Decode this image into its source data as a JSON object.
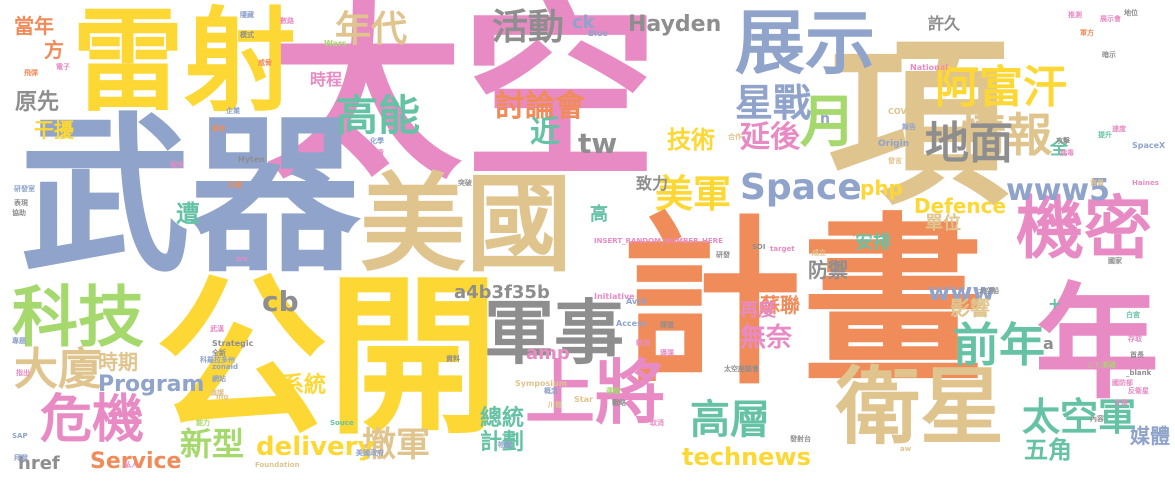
{
  "palette": [
    "#f08c5a",
    "#fdd835",
    "#8fa3cb",
    "#e88bc4",
    "#a5d86d",
    "#e0c48e",
    "#8e8e8e",
    "#66c2a5"
  ],
  "words": [
    {
      "text": "太空",
      "color": "#e88bc4"
    },
    {
      "text": "武器",
      "color": "#8fa3cb"
    },
    {
      "text": "計畫",
      "color": "#f08c5a"
    },
    {
      "text": "公開",
      "color": "#fdd835"
    },
    {
      "text": "雷射",
      "color": "#fdd835"
    },
    {
      "text": "項",
      "color": "#e0c48e"
    },
    {
      "text": "美國",
      "color": "#e0c48e"
    },
    {
      "text": "年",
      "color": "#e88bc4"
    },
    {
      "text": "機密",
      "color": "#e88bc4"
    },
    {
      "text": "衛星",
      "color": "#e0c48e"
    },
    {
      "text": "軍事",
      "color": "#8e8e8e"
    },
    {
      "text": "展示",
      "color": "#8fa3cb"
    },
    {
      "text": "上將",
      "color": "#e88bc4"
    },
    {
      "text": "科技",
      "color": "#a5d86d"
    },
    {
      "text": "月",
      "color": "#a5d86d"
    },
    {
      "text": "Space",
      "color": "#8fa3cb"
    },
    {
      "text": "危機",
      "color": "#e88bc4"
    },
    {
      "text": "阿富汗",
      "color": "#fdd835"
    },
    {
      "text": "前年",
      "color": "#66c2a5"
    },
    {
      "text": "高能",
      "color": "#66c2a5"
    },
    {
      "text": "星戰",
      "color": "#8fa3cb"
    },
    {
      "text": "情報",
      "color": "#e0c48e"
    },
    {
      "text": "地面",
      "color": "#8e8e8e"
    },
    {
      "text": "太空軍",
      "color": "#66c2a5"
    },
    {
      "text": "高層",
      "color": "#66c2a5"
    },
    {
      "text": "大廈",
      "color": "#e0c48e"
    },
    {
      "text": "年代",
      "color": "#e0c48e"
    },
    {
      "text": "活動",
      "color": "#8e8e8e"
    },
    {
      "text": "美軍",
      "color": "#fdd835"
    },
    {
      "text": "延後",
      "color": "#e88bc4"
    },
    {
      "text": "www5",
      "color": "#8fa3cb"
    },
    {
      "text": "討論會",
      "color": "#f08c5a"
    },
    {
      "text": "近",
      "color": "#66c2a5"
    },
    {
      "text": "tw",
      "color": "#8e8e8e"
    },
    {
      "text": "技術",
      "color": "#fdd835"
    },
    {
      "text": "Hayden",
      "color": "#8e8e8e"
    },
    {
      "text": "新型",
      "color": "#a5d86d"
    },
    {
      "text": "撤軍",
      "color": "#e0c48e"
    },
    {
      "text": "delivery",
      "color": "#fdd835"
    },
    {
      "text": "technews",
      "color": "#fdd835"
    },
    {
      "text": "Program",
      "color": "#8fa3cb"
    },
    {
      "text": "時期",
      "color": "#e0c48e"
    },
    {
      "text": "系統",
      "color": "#fdd835"
    },
    {
      "text": "Service",
      "color": "#f08c5a"
    },
    {
      "text": "總統",
      "color": "#66c2a5"
    },
    {
      "text": "計劃",
      "color": "#66c2a5"
    },
    {
      "text": "amp",
      "color": "#e88bc4"
    },
    {
      "text": "蘇聯",
      "color": "#f08c5a"
    },
    {
      "text": "無奈",
      "color": "#e88bc4"
    },
    {
      "text": "再度",
      "color": "#e88bc4"
    },
    {
      "text": "www",
      "color": "#8fa3cb"
    },
    {
      "text": "影響",
      "color": "#e0c48e"
    },
    {
      "text": "Defence",
      "color": "#fdd835"
    },
    {
      "text": "單位",
      "color": "#e0c48e"
    },
    {
      "text": "安排",
      "color": "#66c2a5"
    },
    {
      "text": "防禦",
      "color": "#8e8e8e"
    },
    {
      "text": "php",
      "color": "#fdd835"
    },
    {
      "text": "致力",
      "color": "#8e8e8e"
    },
    {
      "text": "五角",
      "color": "#66c2a5"
    },
    {
      "text": "媒體",
      "color": "#8fa3cb"
    },
    {
      "text": "a4b3f35b",
      "color": "#8e8e8e"
    },
    {
      "text": "cb",
      "color": "#8e8e8e"
    },
    {
      "text": "href",
      "color": "#8e8e8e"
    },
    {
      "text": "遭",
      "color": "#66c2a5"
    },
    {
      "text": "原先",
      "color": "#8e8e8e"
    },
    {
      "text": "干擾",
      "color": "#fdd835"
    },
    {
      "text": "方",
      "color": "#f08c5a"
    },
    {
      "text": "當年",
      "color": "#f08c5a"
    },
    {
      "text": "時程",
      "color": "#e88bc4"
    },
    {
      "text": "許久",
      "color": "#8e8e8e"
    },
    {
      "text": "ck",
      "color": "#8fa3cb"
    },
    {
      "text": "高",
      "color": "#66c2a5"
    },
    {
      "text": "全",
      "color": "#66c2a5"
    },
    {
      "text": "a",
      "color": "#8e8e8e"
    },
    {
      "text": "n",
      "color": "#8fa3cb"
    },
    {
      "text": "+",
      "color": "#66c2a5"
    },
    {
      "text": "Symposium",
      "color": "#e0c48e"
    },
    {
      "text": "Strategic",
      "color": "#8e8e8e"
    },
    {
      "text": "Initiative",
      "color": "#e88bc4"
    },
    {
      "text": "INSERT_RANDOM_NUMBER_HERE",
      "color": "#e88bc4"
    },
    {
      "text": "INSERT_RANDOM_N",
      "color": "#e88bc4"
    },
    {
      "text": "COVID",
      "color": "#e0c48e"
    },
    {
      "text": "SpaceX",
      "color": "#8fa3cb"
    },
    {
      "text": "Origin",
      "color": "#8fa3cb"
    },
    {
      "text": "Blue",
      "color": "#8fa3cb"
    },
    {
      "text": "Wars",
      "color": "#a5d86d"
    },
    {
      "text": "Star",
      "color": "#e0c48e"
    },
    {
      "text": "National",
      "color": "#e88bc4"
    },
    {
      "text": "Special",
      "color": "#f08c5a"
    },
    {
      "text": "Access",
      "color": "#8fa3cb"
    },
    {
      "text": "Avril",
      "color": "#8fa3cb"
    },
    {
      "text": "Haines",
      "color": "#e88bc4"
    },
    {
      "text": "Hyten",
      "color": "#8e8e8e"
    },
    {
      "text": "SAP",
      "color": "#8fa3cb"
    },
    {
      "text": "SDI",
      "color": "#8e8e8e"
    },
    {
      "text": "src",
      "color": "#e88bc4"
    },
    {
      "text": "ing",
      "color": "#e0c48e"
    },
    {
      "text": "Souce",
      "color": "#66c2a5"
    },
    {
      "text": "target",
      "color": "#e88bc4"
    },
    {
      "text": "_blank",
      "color": "#8e8e8e"
    },
    {
      "text": "zonaid",
      "color": "#8fa3cb"
    },
    {
      "text": "Foundation",
      "color": "#e0c48e"
    },
    {
      "text": "aw",
      "color": "#e0c48e"
    },
    {
      "text": "太空新政",
      "color": "#a5d86d"
    },
    {
      "text": "太空座談會",
      "color": "#8e8e8e"
    },
    {
      "text": "反衛星",
      "color": "#e88bc4"
    },
    {
      "text": "科羅拉多州",
      "color": "#8fa3cb"
    },
    {
      "text": "美國政府",
      "color": "#8fa3cb"
    },
    {
      "text": "發射台",
      "color": "#8e8e8e"
    },
    {
      "text": "研發室",
      "color": "#8fa3cb"
    },
    {
      "text": "展示會",
      "color": "#e88bc4"
    },
    {
      "text": "隱藏",
      "color": "#8fa3cb"
    },
    {
      "text": "模式",
      "color": "#8e8e8e"
    },
    {
      "text": "數路",
      "color": "#e88bc4"
    },
    {
      "text": "地位",
      "color": "#8e8e8e"
    },
    {
      "text": "推測",
      "color": "#e88bc4"
    },
    {
      "text": "軍方",
      "color": "#f08c5a"
    },
    {
      "text": "攻擊",
      "color": "#8e8e8e"
    },
    {
      "text": "速度",
      "color": "#e88bc4"
    },
    {
      "text": "暗示",
      "color": "#8e8e8e"
    },
    {
      "text": "威脅",
      "color": "#f08c5a"
    },
    {
      "text": "程序",
      "color": "#e88bc4"
    },
    {
      "text": "電子",
      "color": "#e88bc4"
    },
    {
      "text": "飛彈",
      "color": "#f08c5a"
    },
    {
      "text": "企業",
      "color": "#8fa3cb"
    },
    {
      "text": "化學",
      "color": "#8fa3cb"
    },
    {
      "text": "負責",
      "color": "#e88bc4"
    },
    {
      "text": "事件",
      "color": "#f08c5a"
    },
    {
      "text": "運輸",
      "color": "#a5d86d"
    },
    {
      "text": "官員",
      "color": "#e0c48e"
    },
    {
      "text": "發言",
      "color": "#e0c48e"
    },
    {
      "text": "成立",
      "color": "#e0c48e"
    },
    {
      "text": "研發",
      "color": "#8e8e8e"
    },
    {
      "text": "報告",
      "color": "#8fa3cb"
    },
    {
      "text": "太空船",
      "color": "#8e8e8e"
    },
    {
      "text": "白宮",
      "color": "#66c2a5"
    },
    {
      "text": "存取",
      "color": "#e88bc4"
    },
    {
      "text": "國防部",
      "color": "#e88bc4"
    },
    {
      "text": "首長",
      "color": "#8e8e8e"
    },
    {
      "text": "日期",
      "color": "#f08c5a"
    },
    {
      "text": "突破",
      "color": "#8e8e8e"
    },
    {
      "text": "提升",
      "color": "#66c2a5"
    },
    {
      "text": "病毒",
      "color": "#e88bc4"
    },
    {
      "text": "戰略",
      "color": "#8e8e8e"
    },
    {
      "text": "概念",
      "color": "#8fa3cb"
    },
    {
      "text": "物體",
      "color": "#8fa3cb"
    },
    {
      "text": "合作",
      "color": "#e0c48e"
    },
    {
      "text": "私人",
      "color": "#e88bc4"
    },
    {
      "text": "演講",
      "color": "#e0c48e"
    },
    {
      "text": "網站",
      "color": "#8fa3cb"
    },
    {
      "text": "觀測",
      "color": "#e88bc4"
    },
    {
      "text": "全新",
      "color": "#8e8e8e"
    },
    {
      "text": "文章",
      "color": "#e88bc4"
    },
    {
      "text": "武漢",
      "color": "#e88bc4"
    },
    {
      "text": "拜登",
      "color": "#8fa3cb"
    },
    {
      "text": "指出",
      "color": "#e88bc4"
    },
    {
      "text": "專題",
      "color": "#8fa3cb"
    },
    {
      "text": "表現",
      "color": "#8e8e8e"
    },
    {
      "text": "協助",
      "color": "#8e8e8e"
    },
    {
      "text": "川普",
      "color": "#e0c48e"
    },
    {
      "text": "取消",
      "color": "#e88bc4"
    },
    {
      "text": "彈道",
      "color": "#8e8e8e"
    },
    {
      "text": "軌道",
      "color": "#e88bc4"
    },
    {
      "text": "導彈",
      "color": "#e88bc4"
    },
    {
      "text": "資料",
      "color": "#8e8e8e"
    },
    {
      "text": "能力",
      "color": "#a5d86d"
    },
    {
      "text": "國家",
      "color": "#8e8e8e"
    },
    {
      "text": "內容",
      "color": "#8e8e8e"
    }
  ]
}
